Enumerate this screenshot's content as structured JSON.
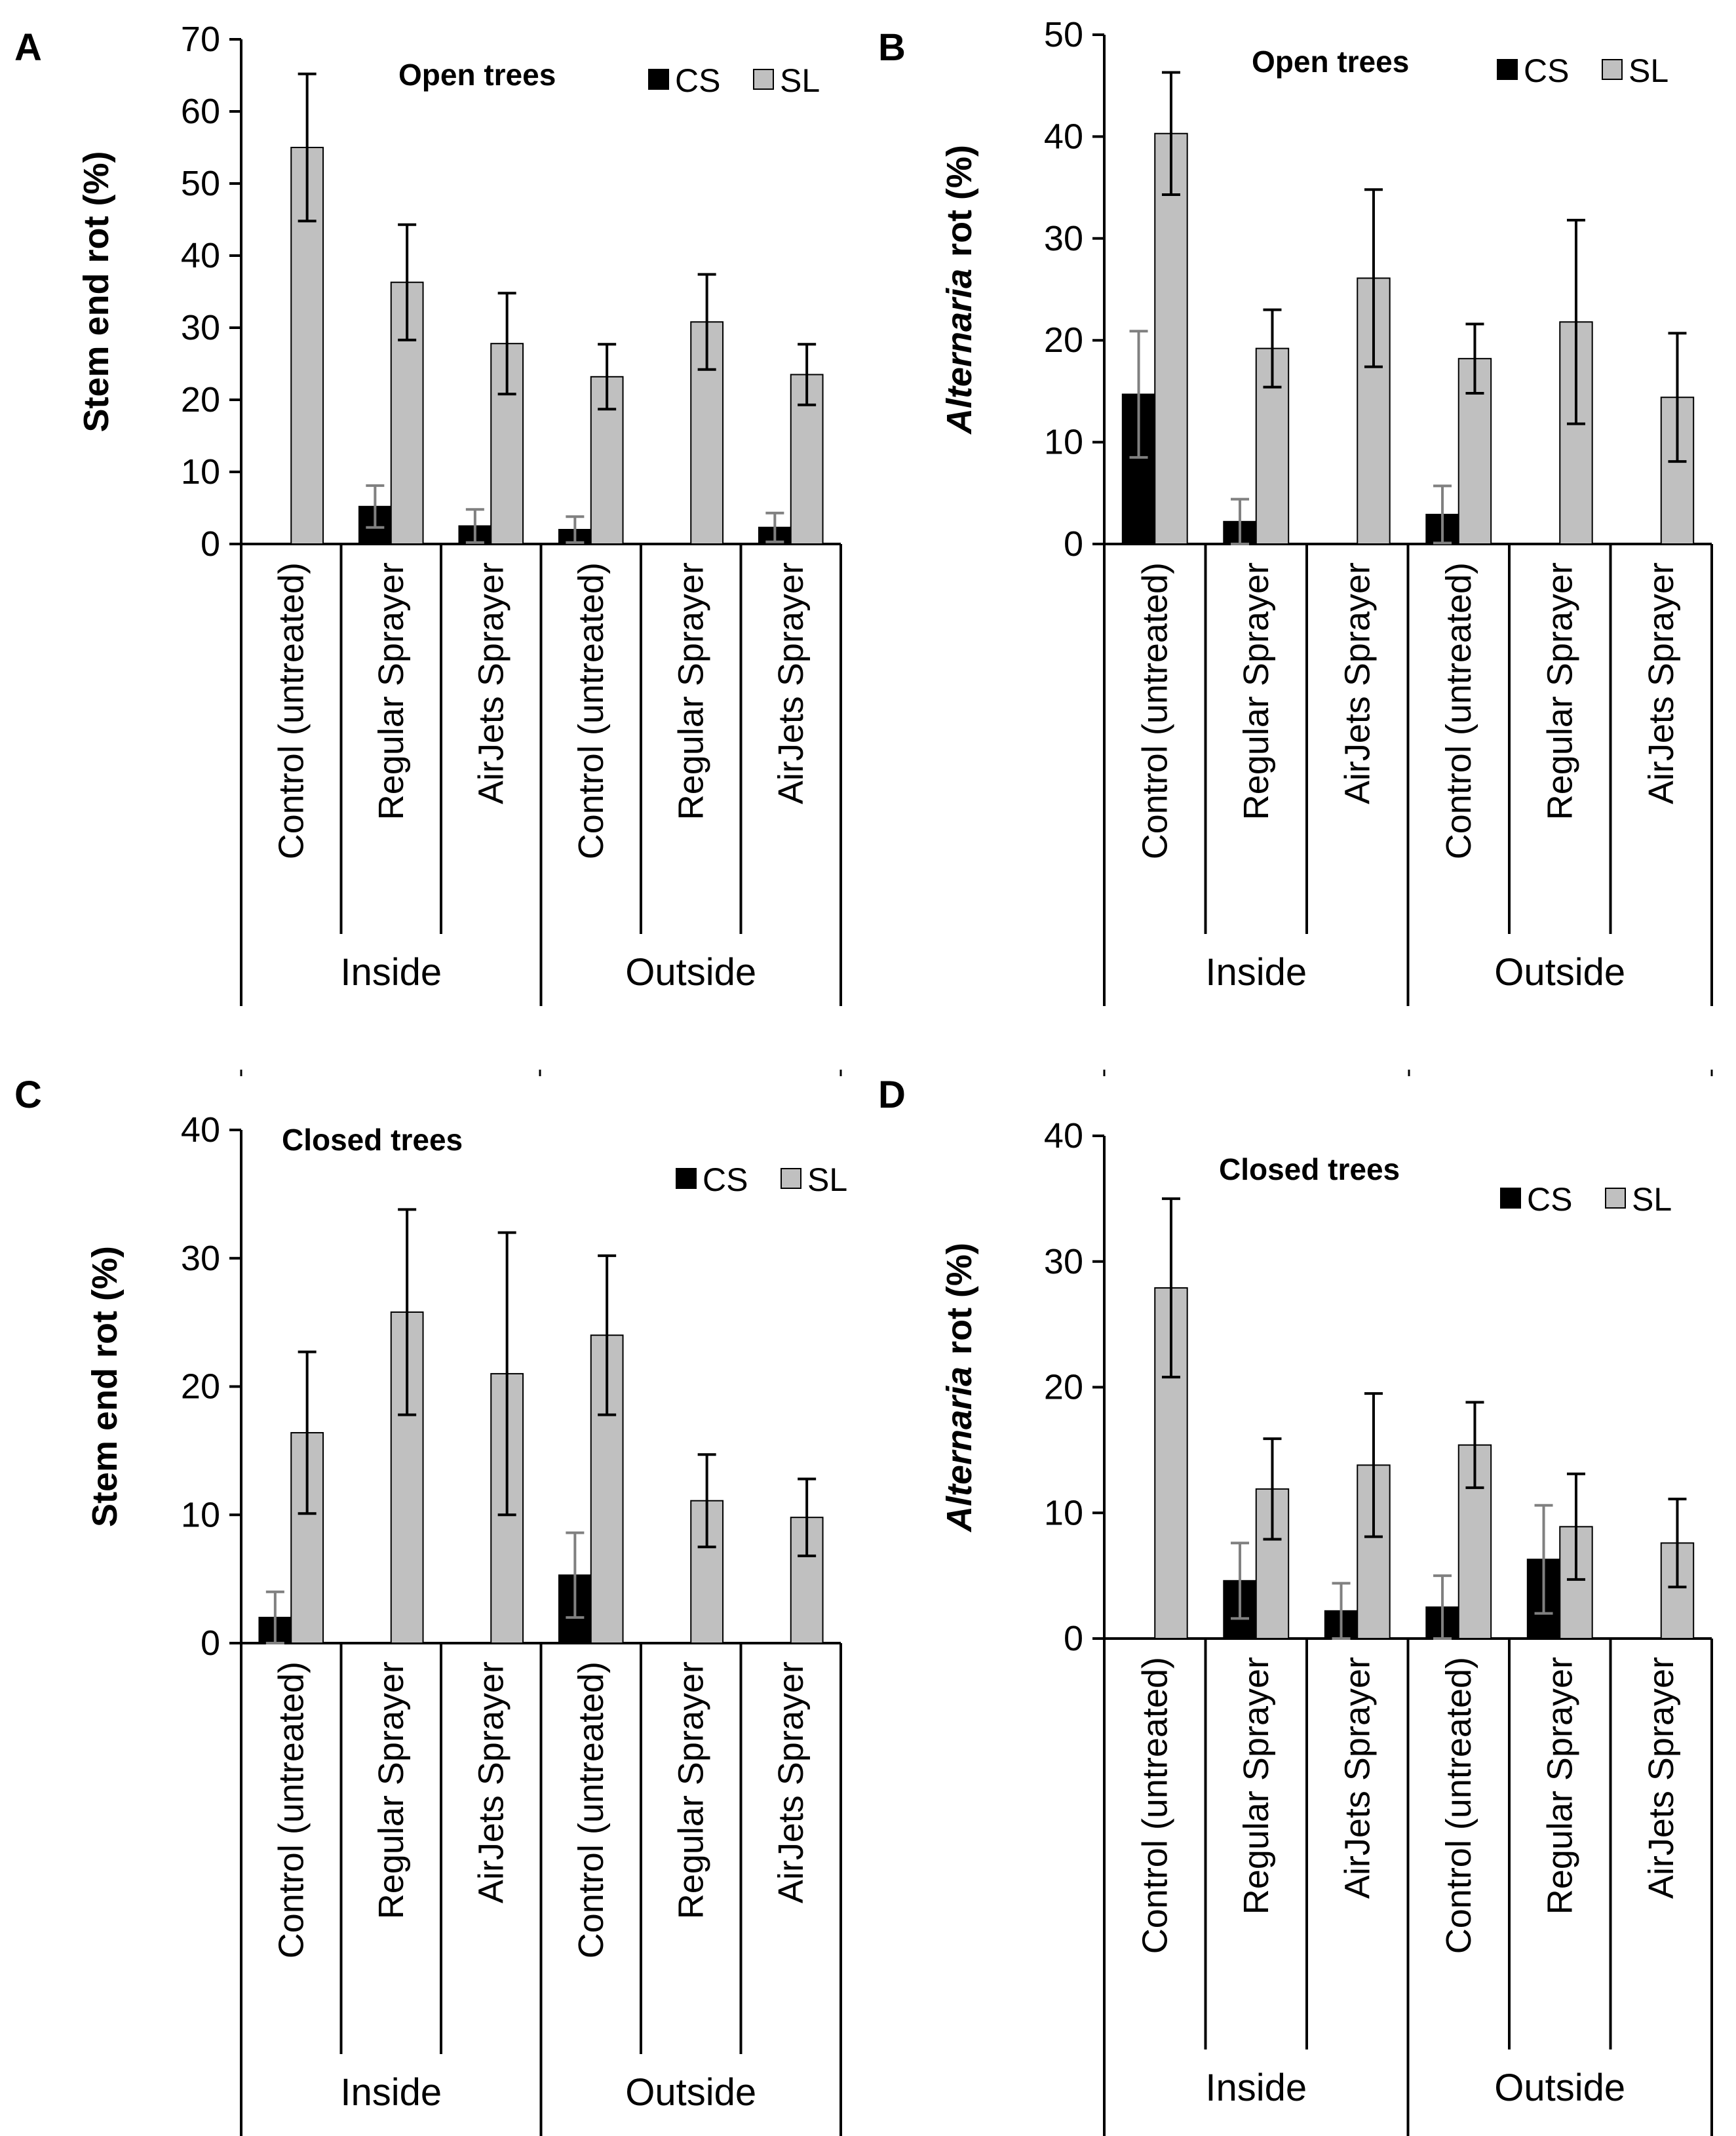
{
  "colors": {
    "cs": "#000000",
    "sl": "#c0c0c0",
    "axis": "#000000"
  },
  "legend": {
    "cs_label": "CS",
    "sl_label": "SL"
  },
  "chart_data": [
    {
      "panel": "A",
      "type": "bar",
      "title": "Open trees",
      "ylabel": "Stem end rot (%)",
      "ylim": [
        0,
        70
      ],
      "yticks": [
        "0",
        "10",
        "20",
        "30",
        "40",
        "50",
        "60",
        "70"
      ],
      "categories": [
        "Control (untreated)",
        "Regular Sprayer",
        "AirJets Sprayer",
        "Control (untreated)",
        "Regular Sprayer",
        "AirJets Sprayer"
      ],
      "groups": [
        "Inside",
        "Outside"
      ],
      "series": [
        {
          "name": "CS",
          "values": [
            0,
            5.2,
            2.5,
            2.0,
            0,
            2.3
          ],
          "errors": [
            0,
            2.9,
            2.3,
            1.8,
            0,
            2.0
          ]
        },
        {
          "name": "SL",
          "values": [
            55.0,
            36.3,
            27.8,
            23.2,
            30.8,
            23.5
          ],
          "errors": [
            10.2,
            8.0,
            7.0,
            4.5,
            6.6,
            4.2
          ]
        }
      ]
    },
    {
      "panel": "B",
      "type": "bar",
      "title": "Open trees",
      "ylabel_italic": "Alternaria",
      "ylabel_rest": "rot (%)",
      "ylim": [
        0,
        50
      ],
      "yticks": [
        "0",
        "10",
        "20",
        "30",
        "40",
        "50"
      ],
      "categories": [
        "Control (untreated)",
        "Regular Sprayer",
        "AirJets Sprayer",
        "Control (untreated)",
        "Regular Sprayer",
        "AirJets Sprayer"
      ],
      "groups": [
        "Inside",
        "Outside"
      ],
      "series": [
        {
          "name": "CS",
          "values": [
            14.7,
            2.2,
            0,
            2.9,
            0,
            0
          ],
          "errors": [
            6.2,
            2.2,
            0,
            2.8,
            0,
            0
          ]
        },
        {
          "name": "SL",
          "values": [
            40.3,
            19.2,
            26.1,
            18.2,
            21.8,
            14.4
          ],
          "errors": [
            6.0,
            3.8,
            8.7,
            3.4,
            10.0,
            6.3
          ]
        }
      ]
    },
    {
      "panel": "C",
      "type": "bar",
      "title": "Closed trees",
      "ylabel": "Stem end rot (%)",
      "ylim": [
        0,
        40
      ],
      "yticks": [
        "0",
        "10",
        "20",
        "30",
        "40"
      ],
      "categories": [
        "Control (untreated)",
        "Regular Sprayer",
        "AirJets Sprayer",
        "Control (untreated)",
        "Regular Sprayer",
        "AirJets Sprayer"
      ],
      "groups": [
        "Inside",
        "Outside"
      ],
      "series": [
        {
          "name": "CS",
          "values": [
            2.0,
            0,
            0,
            5.3,
            0,
            0
          ],
          "errors": [
            2.0,
            0,
            0,
            3.3,
            0,
            0
          ]
        },
        {
          "name": "SL",
          "values": [
            16.4,
            25.8,
            21.0,
            24.0,
            11.1,
            9.8
          ],
          "errors": [
            6.3,
            8.0,
            11.0,
            6.2,
            3.6,
            3.0
          ]
        }
      ]
    },
    {
      "panel": "D",
      "type": "bar",
      "title": "Closed trees",
      "ylabel_italic": "Alternaria",
      "ylabel_rest": "rot (%)",
      "ylim": [
        0,
        40
      ],
      "yticks": [
        "0",
        "10",
        "20",
        "30",
        "40"
      ],
      "categories": [
        "Control (untreated)",
        "Regular Sprayer",
        "AirJets Sprayer",
        "Control (untreated)",
        "Regular Sprayer",
        "AirJets Sprayer"
      ],
      "groups": [
        "Inside",
        "Outside"
      ],
      "series": [
        {
          "name": "CS",
          "values": [
            0,
            4.6,
            2.2,
            2.5,
            6.3,
            0
          ],
          "errors": [
            0,
            3.0,
            2.2,
            2.5,
            4.3,
            0
          ]
        },
        {
          "name": "SL",
          "values": [
            27.9,
            11.9,
            13.8,
            15.4,
            8.9,
            7.6
          ],
          "errors": [
            7.1,
            4.0,
            5.7,
            3.4,
            4.2,
            3.5
          ]
        }
      ]
    }
  ]
}
